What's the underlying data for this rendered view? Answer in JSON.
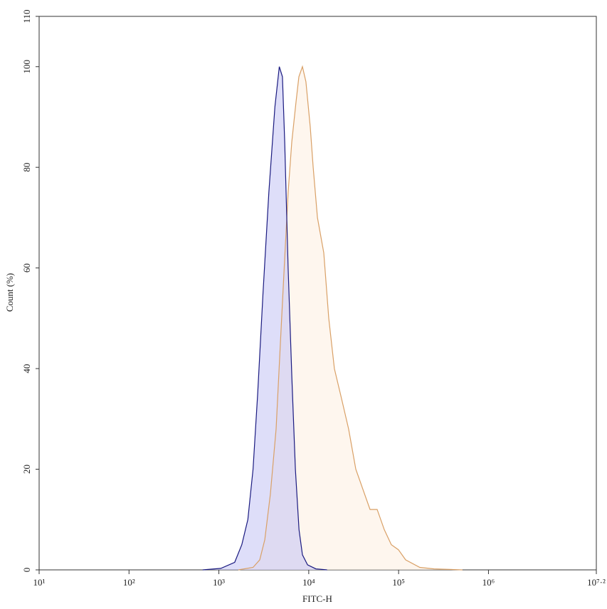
{
  "chart_data": {
    "type": "area",
    "x_label": "FITC-H",
    "y_label": "Count (%)",
    "xscale": "log",
    "xlim": [
      10,
      15848932
    ],
    "ylim": [
      0,
      110
    ],
    "xticks": [
      {
        "value": 10,
        "label": "10¹"
      },
      {
        "value": 100,
        "label": "10²"
      },
      {
        "value": 1000,
        "label": "10³"
      },
      {
        "value": 10000,
        "label": "10⁴"
      },
      {
        "value": 100000,
        "label": "10⁵"
      },
      {
        "value": 1000000,
        "label": "10⁶"
      },
      {
        "value": 15848932,
        "label": "10⁷·²"
      }
    ],
    "yticks": [
      0,
      20,
      40,
      60,
      80,
      100,
      110
    ],
    "series": [
      {
        "color": "#d9a066",
        "fill": "#fdf0e2",
        "x": [
          1650,
          2400,
          2850,
          3240,
          3740,
          4330,
          4830,
          5400,
          5900,
          6470,
          7220,
          7760,
          8500,
          9310,
          10400,
          11200,
          12500,
          14700,
          16700,
          19300,
          23200,
          27800,
          33400,
          40100,
          48100,
          57700,
          69200,
          83000,
          99500,
          119600,
          172000,
          248000,
          514000
        ],
        "values": [
          0,
          0.5,
          2,
          6,
          15,
          28,
          45,
          62,
          75,
          85,
          93,
          98,
          100,
          97,
          88,
          80,
          70,
          63,
          50,
          40,
          34,
          28,
          20,
          16,
          12,
          12,
          8,
          5,
          4,
          2,
          0.5,
          0.2,
          0
        ]
      },
      {
        "color": "#1a1a80",
        "fill": "#c8c8f5",
        "x": [
          660,
          1050,
          1500,
          1800,
          2100,
          2400,
          2700,
          3100,
          3600,
          4200,
          4700,
          5100,
          5400,
          5900,
          6500,
          7100,
          7800,
          8500,
          9700,
          12000,
          16000
        ],
        "values": [
          0,
          0.3,
          1.5,
          5,
          10,
          20,
          35,
          55,
          75,
          92,
          100,
          98,
          85,
          60,
          38,
          20,
          8,
          3,
          1,
          0.2,
          0
        ]
      }
    ]
  }
}
